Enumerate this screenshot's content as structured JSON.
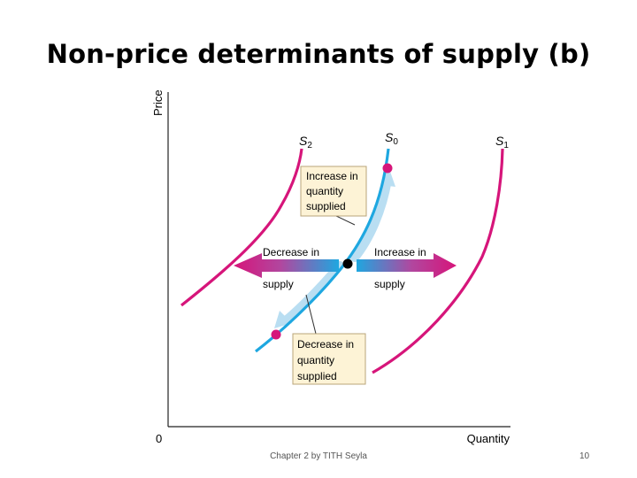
{
  "slide": {
    "title": "Non-price determinants of supply (b)",
    "footer": "Chapter 2 by TITH Seyla",
    "page_number": "10"
  },
  "axes": {
    "y_label": "Price",
    "x_label": "Quantity",
    "origin_label": "0"
  },
  "curves": [
    {
      "id": "S2",
      "letter": "S",
      "sub": "2",
      "color": "#d6157a"
    },
    {
      "id": "S0",
      "letter": "S",
      "sub": "0",
      "color": "#1ea7e0"
    },
    {
      "id": "S1",
      "letter": "S",
      "sub": "1",
      "color": "#d6157a"
    }
  ],
  "arrows": {
    "decrease_supply": [
      "Decrease in",
      "supply"
    ],
    "increase_supply": [
      "Increase in",
      "supply"
    ]
  },
  "callouts": {
    "increase_quantity_supplied": [
      "Increase in",
      "quantity",
      "supplied"
    ],
    "decrease_quantity_supplied": [
      "Decrease in",
      "quantity",
      "supplied"
    ]
  },
  "colors": {
    "supply_shift": "#d6157a",
    "original_supply": "#1ea7e0",
    "callout_fill": "#fdf3d6",
    "callout_border": "#b9a57a"
  }
}
